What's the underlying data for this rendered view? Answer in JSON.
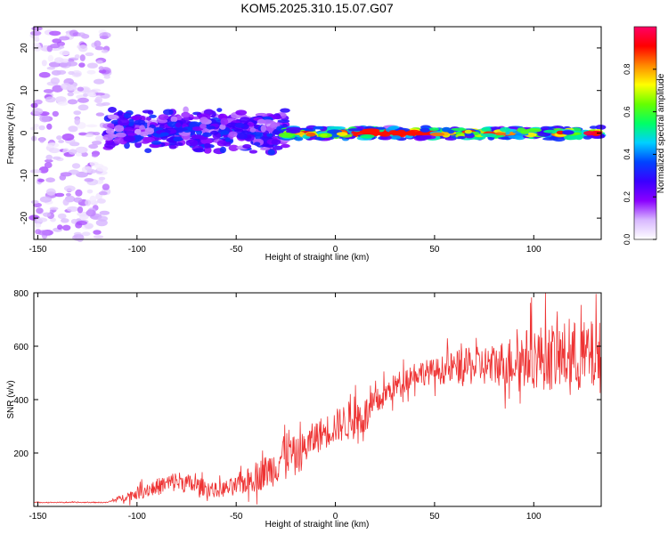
{
  "title": "KOM5.2025.310.15.07.G07",
  "chart_data": [
    {
      "type": "heatmap",
      "xlabel": "Height of straight line (km)",
      "ylabel": "Frequency (Hz)",
      "xlim": [
        -152,
        134
      ],
      "ylim": [
        -25,
        25
      ],
      "xticks": [
        "-150",
        "-100",
        "-50",
        "0",
        "50",
        "100"
      ],
      "xtick_values": [
        -150,
        -100,
        -50,
        0,
        50,
        100
      ],
      "yticks": [
        "20",
        "10",
        "0",
        "-10",
        "-20"
      ],
      "ytick_values": [
        20,
        10,
        0,
        -10,
        -20
      ],
      "colorbar": {
        "label": "Normalized spectral amplitude",
        "range": [
          0,
          1
        ],
        "ticks": [
          "0.0",
          "0.2",
          "0.4",
          "0.6",
          "0.8"
        ],
        "tick_values": [
          0.0,
          0.2,
          0.4,
          0.6,
          0.8
        ],
        "colormap": [
          "#ffffff",
          "#d8b8ff",
          "#8a00ff",
          "#3a00ff",
          "#0044ff",
          "#00d0ff",
          "#00ff66",
          "#66ff00",
          "#ffff00",
          "#ff8800",
          "#ff0000",
          "#ff0066"
        ]
      },
      "regions": [
        {
          "x_range": [
            -152,
            -115
          ],
          "freq_spread_hz": 25,
          "amplitude": [
            0.02,
            0.15
          ],
          "description_value": "sparse noise"
        },
        {
          "x_range": [
            -115,
            -25
          ],
          "freq_spread_hz": 6,
          "amplitude": [
            0.1,
            0.35
          ]
        },
        {
          "x_range": [
            -25,
            134
          ],
          "freq_spread_hz": 1.5,
          "amplitude": [
            0.3,
            1.0
          ]
        }
      ]
    },
    {
      "type": "line",
      "xlabel": "Height of straight line (km)",
      "ylabel": "SNR (v/v)",
      "xlim": [
        -152,
        134
      ],
      "ylim": [
        0,
        800
      ],
      "xticks": [
        "-150",
        "-100",
        "-50",
        "0",
        "50",
        "100"
      ],
      "xtick_values": [
        -150,
        -100,
        -50,
        0,
        50,
        100
      ],
      "yticks": [
        "800",
        "600",
        "400",
        "200"
      ],
      "ytick_values": [
        800,
        600,
        400,
        200
      ],
      "series": [
        {
          "name": "SNR",
          "color": "#ee3333",
          "trend_x": [
            -152,
            -115,
            -100,
            -80,
            -60,
            -50,
            -40,
            -30,
            -25,
            -20,
            -10,
            0,
            10,
            15,
            20,
            25,
            30,
            40,
            50,
            60,
            80,
            100,
            120,
            134
          ],
          "trend_y": [
            15,
            15,
            50,
            95,
            60,
            75,
            110,
            150,
            220,
            180,
            260,
            300,
            330,
            340,
            380,
            420,
            450,
            500,
            505,
            520,
            530,
            560,
            560,
            560
          ],
          "noise_amplitude": [
            2,
            2,
            30,
            50,
            35,
            45,
            70,
            90,
            120,
            90,
            80,
            80,
            100,
            90,
            70,
            60,
            60,
            60,
            60,
            80,
            100,
            150,
            170,
            170
          ],
          "n_samples": 1100
        }
      ]
    }
  ]
}
